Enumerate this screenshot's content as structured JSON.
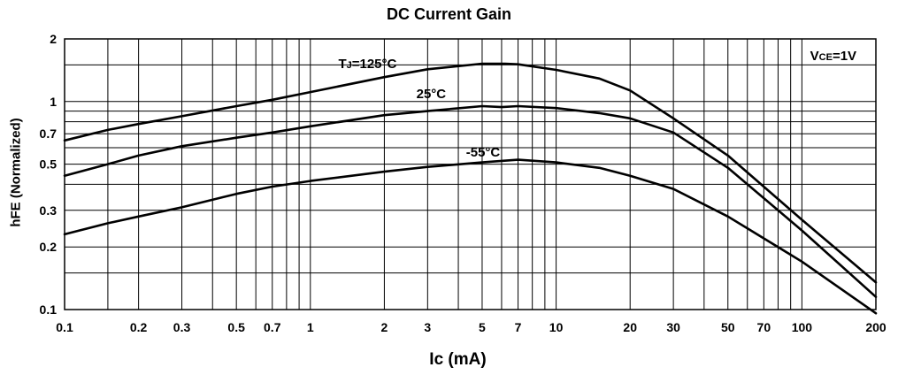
{
  "chart_data": {
    "type": "line",
    "title": "DC Current Gain",
    "xlabel": "Ic (mA)",
    "ylabel": "hFE (Normalized)",
    "xscale": "log",
    "yscale": "log",
    "xlim": [
      0.1,
      200
    ],
    "ylim": [
      0.1,
      2
    ],
    "grid": true,
    "xticks": [
      {
        "v": 0.1,
        "label": "0.1"
      },
      {
        "v": 0.2,
        "label": "0.2"
      },
      {
        "v": 0.3,
        "label": "0.3"
      },
      {
        "v": 0.5,
        "label": "0.5"
      },
      {
        "v": 0.7,
        "label": "0.7"
      },
      {
        "v": 1,
        "label": "1"
      },
      {
        "v": 2,
        "label": "2"
      },
      {
        "v": 3,
        "label": "3"
      },
      {
        "v": 5,
        "label": "5"
      },
      {
        "v": 7,
        "label": "7"
      },
      {
        "v": 10,
        "label": "10"
      },
      {
        "v": 20,
        "label": "20"
      },
      {
        "v": 30,
        "label": "30"
      },
      {
        "v": 50,
        "label": "50"
      },
      {
        "v": 70,
        "label": "70"
      },
      {
        "v": 100,
        "label": "100"
      },
      {
        "v": 200,
        "label": "200"
      }
    ],
    "yticks": [
      {
        "v": 0.1,
        "label": "0.1"
      },
      {
        "v": 0.2,
        "label": "0.2"
      },
      {
        "v": 0.3,
        "label": "0.3"
      },
      {
        "v": 0.5,
        "label": "0.5"
      },
      {
        "v": 0.7,
        "label": "0.7"
      },
      {
        "v": 1,
        "label": "1"
      },
      {
        "v": 2,
        "label": "2"
      }
    ],
    "xgrid": [
      0.15,
      0.2,
      0.3,
      0.4,
      0.5,
      0.6,
      0.7,
      0.8,
      0.9,
      1,
      2,
      3,
      4,
      5,
      6,
      7,
      8,
      9,
      10,
      20,
      30,
      40,
      50,
      60,
      70,
      80,
      90,
      100
    ],
    "ygrid": [
      0.15,
      0.2,
      0.3,
      0.4,
      0.5,
      0.6,
      0.7,
      0.8,
      0.9,
      1,
      1.5
    ],
    "condition": {
      "main": "V",
      "sub": "CE",
      "tail": "=1V"
    },
    "series": [
      {
        "name": "TJ=125°C",
        "label_parts": {
          "main": "T",
          "sub": "J",
          "tail": "=125°C"
        },
        "x": [
          0.1,
          0.15,
          0.2,
          0.3,
          0.5,
          0.7,
          1,
          2,
          3,
          5,
          6.2,
          7,
          10,
          15,
          20,
          30,
          50,
          100,
          200
        ],
        "y": [
          0.65,
          0.73,
          0.78,
          0.85,
          0.95,
          1.02,
          1.11,
          1.31,
          1.43,
          1.52,
          1.52,
          1.51,
          1.42,
          1.29,
          1.13,
          0.83,
          0.55,
          0.27,
          0.135
        ]
      },
      {
        "name": "25°C",
        "x": [
          0.1,
          0.15,
          0.2,
          0.3,
          0.5,
          0.7,
          1,
          2,
          3,
          5,
          6,
          7,
          10,
          15,
          20,
          30,
          50,
          100,
          200
        ],
        "y": [
          0.44,
          0.5,
          0.55,
          0.61,
          0.67,
          0.71,
          0.76,
          0.86,
          0.9,
          0.95,
          0.94,
          0.95,
          0.93,
          0.88,
          0.83,
          0.71,
          0.48,
          0.24,
          0.115
        ]
      },
      {
        "name": "-55°C",
        "x": [
          0.1,
          0.15,
          0.2,
          0.3,
          0.5,
          0.7,
          1,
          2,
          3,
          5,
          7,
          10,
          15,
          20,
          30,
          50,
          70,
          100,
          200
        ],
        "y": [
          0.23,
          0.26,
          0.28,
          0.31,
          0.36,
          0.39,
          0.415,
          0.46,
          0.485,
          0.51,
          0.525,
          0.51,
          0.48,
          0.44,
          0.38,
          0.28,
          0.22,
          0.17,
          0.096
        ]
      }
    ]
  }
}
